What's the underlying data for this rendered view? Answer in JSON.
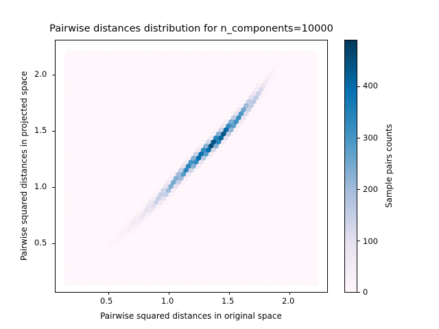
{
  "chart": {
    "title": "Pairwise distances distribution for n_components=10000",
    "xlabel": "Pairwise squared distances in original space",
    "ylabel": "Pairwise squared distances in projected space",
    "colorbar_label": "Sample pairs counts",
    "x_ticks": [
      "0.5",
      "1.0",
      "1.5",
      "2.0"
    ],
    "y_ticks": [
      "0.5",
      "1.0",
      "1.5",
      "2.0"
    ],
    "cb_ticks": [
      "0",
      "100",
      "200",
      "300",
      "400"
    ]
  },
  "chart_data": {
    "type": "heatmap",
    "subtype": "hexbin",
    "title": "Pairwise distances distribution for n_components=10000",
    "xlabel": "Pairwise squared distances in original space",
    "ylabel": "Pairwise squared distances in projected space",
    "xlim": [
      0.06,
      2.31
    ],
    "ylim": [
      0.07,
      2.31
    ],
    "x_ticks": [
      0.5,
      1.0,
      1.5,
      2.0
    ],
    "y_ticks": [
      0.5,
      1.0,
      1.5,
      2.0
    ],
    "hexbin_extent": {
      "x": [
        0.15,
        2.22
      ],
      "y": [
        0.15,
        2.22
      ]
    },
    "colormap": "PuBu",
    "colorbar": {
      "label": "Sample pairs counts",
      "range": [
        0,
        490
      ],
      "ticks": [
        0,
        100,
        200,
        300,
        400
      ]
    },
    "grid": false,
    "ridge": {
      "x": [
        0.45,
        0.6,
        0.75,
        0.9,
        1.0,
        1.1,
        1.2,
        1.3,
        1.4,
        1.5,
        1.6,
        1.7,
        1.8,
        1.9
      ],
      "y": [
        0.45,
        0.58,
        0.72,
        0.88,
        0.99,
        1.11,
        1.22,
        1.32,
        1.42,
        1.53,
        1.65,
        1.78,
        1.92,
        2.06
      ],
      "counts": [
        5,
        20,
        60,
        140,
        220,
        300,
        380,
        420,
        490,
        400,
        300,
        200,
        60,
        15
      ]
    },
    "colors": {
      "low": "#fff7fb",
      "mid": "#74a9cf",
      "high": "#023858"
    }
  }
}
